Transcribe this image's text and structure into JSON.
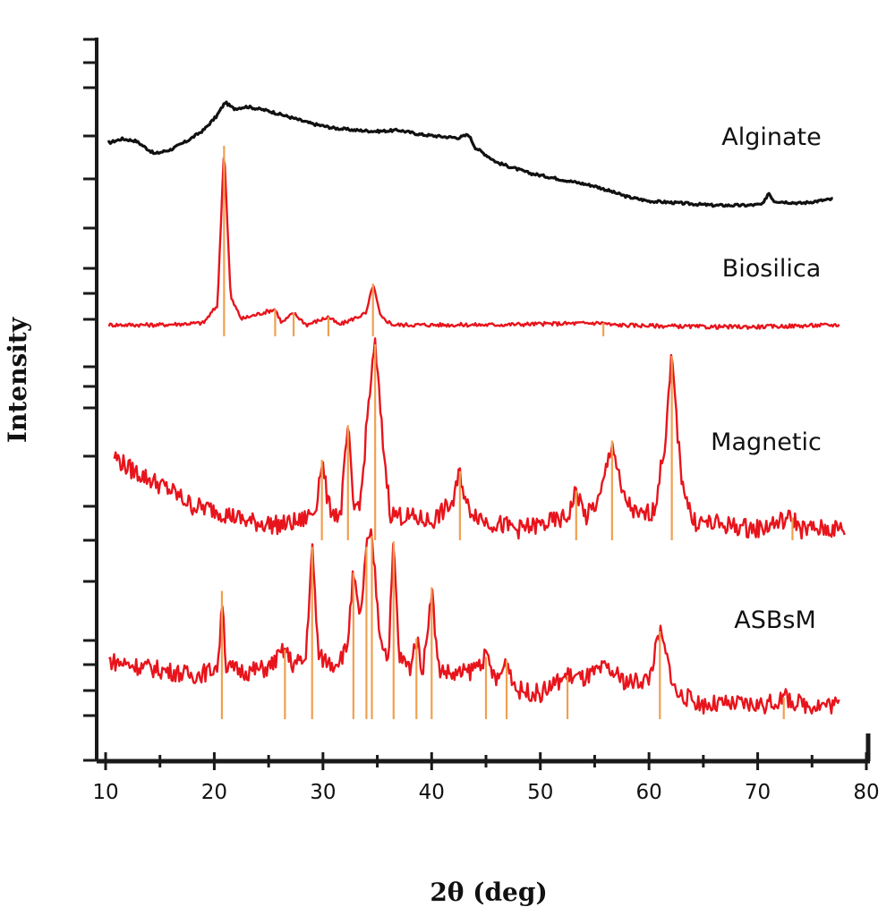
{
  "chart_data": {
    "type": "line",
    "title": "",
    "xlabel": "2θ (deg)",
    "ylabel": "Intensity",
    "xlim": [
      10,
      80
    ],
    "xticks": [
      10,
      20,
      30,
      40,
      50,
      60,
      70,
      80
    ],
    "x_tick_labels": [
      "10",
      "20",
      "30",
      "40",
      "50",
      "60",
      "70",
      "80"
    ],
    "y_ticks_labeled": false,
    "grid": false,
    "legend": "labels placed beside each curve (right side)",
    "series": [
      {
        "name": "Alginate",
        "color": "#111111",
        "points": [
          [
            10.2,
            0.6
          ],
          [
            11.5,
            0.64
          ],
          [
            12.8,
            0.62
          ],
          [
            14.5,
            0.5
          ],
          [
            16.0,
            0.54
          ],
          [
            17.5,
            0.62
          ],
          [
            19.0,
            0.72
          ],
          [
            20.2,
            0.85
          ],
          [
            21.0,
            0.98
          ],
          [
            21.8,
            0.92
          ],
          [
            23.0,
            0.94
          ],
          [
            25.0,
            0.9
          ],
          [
            27.0,
            0.84
          ],
          [
            29.0,
            0.78
          ],
          [
            31.0,
            0.74
          ],
          [
            33.0,
            0.72
          ],
          [
            35.0,
            0.71
          ],
          [
            37.0,
            0.72
          ],
          [
            39.0,
            0.68
          ],
          [
            41.0,
            0.66
          ],
          [
            42.5,
            0.65
          ],
          [
            43.4,
            0.68
          ],
          [
            44.0,
            0.56
          ],
          [
            46.0,
            0.42
          ],
          [
            49.0,
            0.32
          ],
          [
            52.0,
            0.26
          ],
          [
            55.0,
            0.2
          ],
          [
            58.0,
            0.1
          ],
          [
            60.0,
            0.06
          ],
          [
            63.0,
            0.04
          ],
          [
            66.0,
            0.02
          ],
          [
            69.0,
            0.02
          ],
          [
            70.5,
            0.03
          ],
          [
            71.0,
            0.14
          ],
          [
            71.5,
            0.06
          ],
          [
            74.0,
            0.04
          ],
          [
            77.0,
            0.08
          ]
        ],
        "peaks_2theta": [
          21.0,
          43.4,
          71.0
        ]
      },
      {
        "name": "Biosilica",
        "color": "#e8141c",
        "points": [
          [
            10.3,
            0.04
          ],
          [
            15,
            0.04
          ],
          [
            19,
            0.05
          ],
          [
            20.3,
            0.14
          ],
          [
            20.9,
            0.95
          ],
          [
            21.5,
            0.18
          ],
          [
            22.5,
            0.07
          ],
          [
            25.6,
            0.12
          ],
          [
            26.2,
            0.05
          ],
          [
            27.3,
            0.1
          ],
          [
            28.5,
            0.04
          ],
          [
            30.5,
            0.08
          ],
          [
            31.5,
            0.04
          ],
          [
            34.0,
            0.1
          ],
          [
            34.6,
            0.25
          ],
          [
            35.3,
            0.08
          ],
          [
            36.5,
            0.04
          ],
          [
            45,
            0.04
          ],
          [
            55.8,
            0.05
          ],
          [
            56.5,
            0.04
          ],
          [
            65,
            0.03
          ],
          [
            70,
            0.03
          ],
          [
            77.6,
            0.04
          ]
        ],
        "peaks_2theta": [
          20.9,
          25.6,
          27.3,
          30.5,
          34.6,
          55.8
        ]
      },
      {
        "name": "Magnetic",
        "color": "#e8141c",
        "points": [
          [
            10.8,
            0.42
          ],
          [
            12,
            0.36
          ],
          [
            14,
            0.3
          ],
          [
            16,
            0.24
          ],
          [
            18,
            0.16
          ],
          [
            20,
            0.14
          ],
          [
            23,
            0.08
          ],
          [
            26,
            0.06
          ],
          [
            28,
            0.08
          ],
          [
            29.3,
            0.14
          ],
          [
            29.9,
            0.4
          ],
          [
            30.5,
            0.16
          ],
          [
            31.6,
            0.1
          ],
          [
            32.3,
            0.58
          ],
          [
            32.8,
            0.14
          ],
          [
            33.5,
            0.2
          ],
          [
            34.2,
            0.7
          ],
          [
            34.8,
            1.0
          ],
          [
            35.5,
            0.5
          ],
          [
            36.2,
            0.12
          ],
          [
            38,
            0.1
          ],
          [
            40,
            0.08
          ],
          [
            42.0,
            0.18
          ],
          [
            42.6,
            0.34
          ],
          [
            43.2,
            0.16
          ],
          [
            45,
            0.08
          ],
          [
            48,
            0.04
          ],
          [
            50,
            0.06
          ],
          [
            52.5,
            0.1
          ],
          [
            53.3,
            0.24
          ],
          [
            54.2,
            0.1
          ],
          [
            55.5,
            0.2
          ],
          [
            56.6,
            0.5
          ],
          [
            57.5,
            0.22
          ],
          [
            59,
            0.1
          ],
          [
            60.5,
            0.14
          ],
          [
            61.5,
            0.5
          ],
          [
            62.1,
            0.94
          ],
          [
            62.9,
            0.34
          ],
          [
            64,
            0.08
          ],
          [
            67,
            0.06
          ],
          [
            70,
            0.04
          ],
          [
            73.2,
            0.1
          ],
          [
            74,
            0.04
          ],
          [
            78,
            0.04
          ]
        ],
        "peaks_2theta": [
          29.9,
          32.3,
          34.8,
          42.6,
          53.3,
          56.6,
          62.1,
          73.2
        ]
      },
      {
        "name": "ASBsM",
        "color": "#e8141c",
        "points": [
          [
            10.3,
            0.3
          ],
          [
            12,
            0.28
          ],
          [
            14,
            0.26
          ],
          [
            16,
            0.24
          ],
          [
            18,
            0.22
          ],
          [
            19.5,
            0.24
          ],
          [
            20.4,
            0.28
          ],
          [
            20.7,
            0.68
          ],
          [
            21.1,
            0.26
          ],
          [
            23,
            0.24
          ],
          [
            25,
            0.26
          ],
          [
            26.5,
            0.36
          ],
          [
            27.2,
            0.28
          ],
          [
            28.4,
            0.3
          ],
          [
            29.0,
            0.92
          ],
          [
            29.6,
            0.32
          ],
          [
            31,
            0.28
          ],
          [
            32.2,
            0.36
          ],
          [
            32.8,
            0.78
          ],
          [
            33.4,
            0.5
          ],
          [
            34.0,
            0.92
          ],
          [
            34.5,
            0.98
          ],
          [
            35.2,
            0.46
          ],
          [
            36.0,
            0.3
          ],
          [
            36.5,
            0.95
          ],
          [
            37.0,
            0.32
          ],
          [
            38,
            0.26
          ],
          [
            38.6,
            0.42
          ],
          [
            39.2,
            0.24
          ],
          [
            40.0,
            0.7
          ],
          [
            40.6,
            0.26
          ],
          [
            42,
            0.22
          ],
          [
            43.5,
            0.24
          ],
          [
            45.0,
            0.32
          ],
          [
            46,
            0.18
          ],
          [
            46.9,
            0.3
          ],
          [
            47.8,
            0.14
          ],
          [
            50,
            0.12
          ],
          [
            52.5,
            0.22
          ],
          [
            54,
            0.2
          ],
          [
            56,
            0.26
          ],
          [
            58,
            0.18
          ],
          [
            60,
            0.2
          ],
          [
            61.0,
            0.46
          ],
          [
            61.7,
            0.3
          ],
          [
            62.5,
            0.12
          ],
          [
            65,
            0.06
          ],
          [
            68,
            0.06
          ],
          [
            71,
            0.06
          ],
          [
            72.4,
            0.1
          ],
          [
            74,
            0.06
          ],
          [
            77.5,
            0.06
          ]
        ],
        "peaks_2theta": [
          20.7,
          26.5,
          29.0,
          32.8,
          34.0,
          34.5,
          36.5,
          38.6,
          40.0,
          45.0,
          46.9,
          52.5,
          61.0,
          72.4
        ]
      }
    ]
  }
}
